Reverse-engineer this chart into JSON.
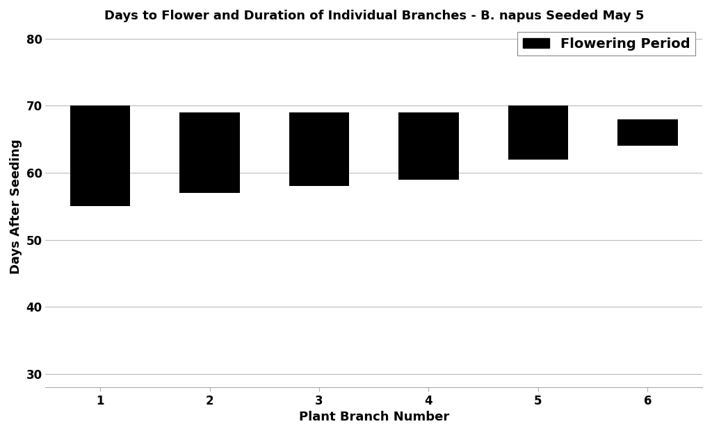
{
  "title": "Days to Flower and Duration of Individual Branches - B. napus Seeded May 5",
  "xlabel": "Plant Branch Number",
  "ylabel": "Days After Seeding",
  "categories": [
    1,
    2,
    3,
    4,
    5,
    6
  ],
  "bar_bottoms": [
    55,
    57,
    58,
    59,
    62,
    64
  ],
  "bar_tops": [
    70,
    69,
    69,
    69,
    70,
    68
  ],
  "bar_color": "#000000",
  "ylim": [
    28,
    82
  ],
  "yticks": [
    30,
    40,
    50,
    60,
    70,
    80
  ],
  "legend_label": "Flowering Period",
  "background_color": "#ffffff",
  "grid_color": "#bbbbbb",
  "title_fontsize": 13,
  "axis_label_fontsize": 13,
  "tick_fontsize": 12,
  "legend_fontsize": 14,
  "bar_width": 0.55
}
